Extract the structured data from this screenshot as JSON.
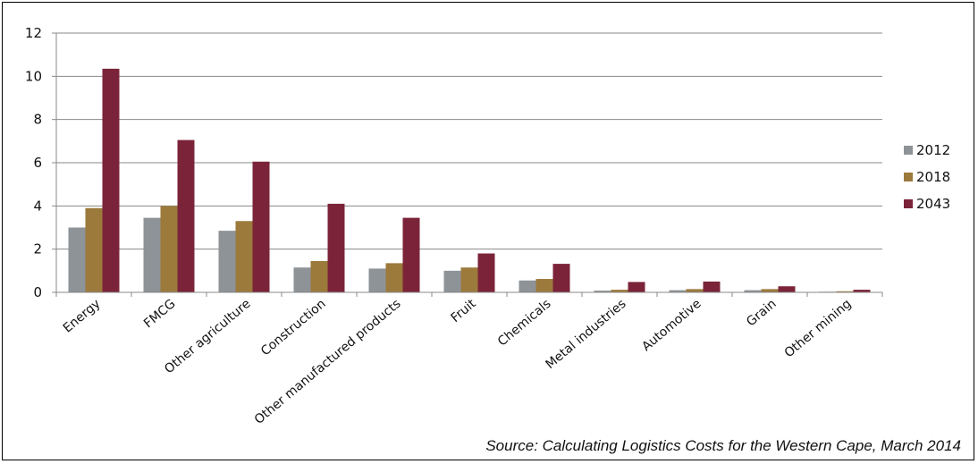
{
  "chart_data": {
    "type": "bar",
    "categories": [
      "Energy",
      "FMCG",
      "Other agriculture",
      "Construction",
      "Other manufactured products",
      "Fruit",
      "Chemicals",
      "Metal industries",
      "Automotive",
      "Grain",
      "Other mining"
    ],
    "series": [
      {
        "name": "2012",
        "color": "#8e9398",
        "values": [
          3.0,
          3.45,
          2.85,
          1.15,
          1.1,
          1.0,
          0.55,
          0.08,
          0.1,
          0.1,
          0.03
        ]
      },
      {
        "name": "2018",
        "color": "#9c7a3c",
        "values": [
          3.9,
          4.0,
          3.3,
          1.45,
          1.35,
          1.15,
          0.62,
          0.12,
          0.15,
          0.15,
          0.05
        ]
      },
      {
        "name": "2043",
        "color": "#7b2439",
        "values": [
          10.35,
          7.05,
          6.05,
          4.1,
          3.45,
          1.8,
          1.32,
          0.48,
          0.5,
          0.28,
          0.12
        ]
      }
    ],
    "yticks": [
      0,
      2,
      4,
      6,
      8,
      10,
      12
    ],
    "ylim": [
      0,
      12
    ],
    "grid": true,
    "legend_position": "right",
    "title": "",
    "xlabel": "",
    "ylabel": ""
  },
  "source_note": "Source: Calculating Logistics Costs for the Western Cape, March 2014"
}
